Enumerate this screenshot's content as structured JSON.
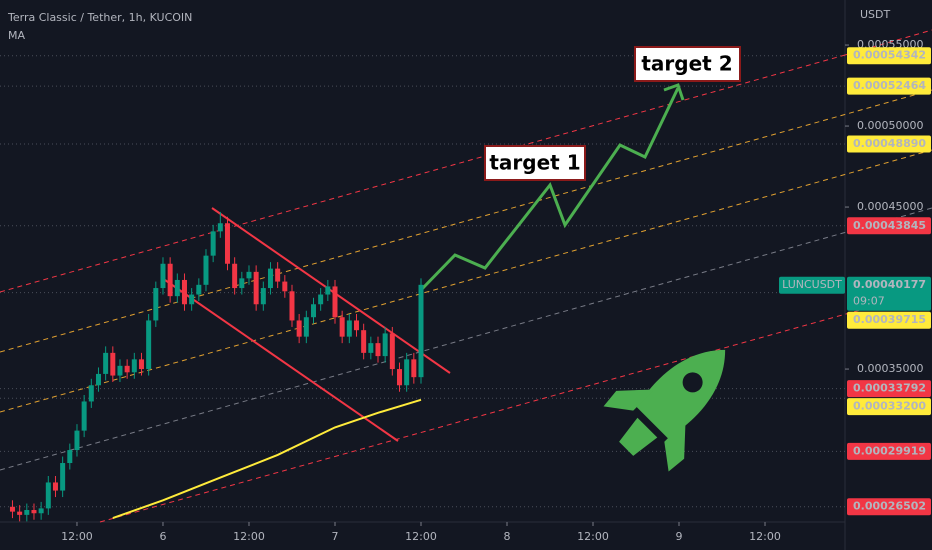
{
  "chart_data": {
    "type": "candlestick",
    "title": "Terra Classic / Tether, 1h, KUCOIN",
    "currency": "USDT",
    "up_color": "#089981",
    "down_color": "#f23645",
    "x": [
      -9,
      -8,
      -7,
      -6,
      -5,
      -4,
      -3,
      -2,
      -1,
      0,
      1,
      2,
      3,
      4,
      5,
      6,
      7,
      8,
      9,
      10,
      11,
      12,
      13,
      14,
      15,
      16,
      17,
      18,
      19,
      20,
      21,
      22,
      23,
      24,
      25,
      26,
      27,
      28,
      29,
      30,
      31,
      32,
      33,
      34,
      35,
      36,
      37,
      38,
      39,
      40,
      41,
      42,
      43,
      44,
      45,
      46,
      47,
      48
    ],
    "open": [
      0.000265,
      0.000262,
      0.00026,
      0.000263,
      0.000261,
      0.000264,
      0.00028,
      0.000275,
      0.000292,
      0.0003,
      0.000312,
      0.00033,
      0.00034,
      0.000347,
      0.00036,
      0.000346,
      0.000352,
      0.000348,
      0.000356,
      0.00035,
      0.00038,
      0.0004,
      0.000415,
      0.000395,
      0.000405,
      0.00039,
      0.000396,
      0.000402,
      0.00042,
      0.000435,
      0.00044,
      0.000415,
      0.0004,
      0.000406,
      0.00041,
      0.00039,
      0.0004,
      0.000412,
      0.000404,
      0.000398,
      0.00038,
      0.00037,
      0.000382,
      0.00039,
      0.000396,
      0.000401,
      0.000382,
      0.00037,
      0.00038,
      0.000374,
      0.00036,
      0.000366,
      0.000358,
      0.000372,
      0.00035,
      0.00034,
      0.000356,
      0.000345
    ],
    "high": [
      0.000269,
      0.000266,
      0.000267,
      0.000267,
      0.000268,
      0.000284,
      0.000284,
      0.000296,
      0.000304,
      0.000316,
      0.000334,
      0.000344,
      0.000351,
      0.000364,
      0.000364,
      0.000356,
      0.000356,
      0.00036,
      0.00036,
      0.000384,
      0.000404,
      0.000419,
      0.000419,
      0.000409,
      0.000409,
      0.0004,
      0.000406,
      0.000424,
      0.000439,
      0.000447,
      0.000444,
      0.000419,
      0.00041,
      0.000414,
      0.000414,
      0.000404,
      0.000416,
      0.000416,
      0.000408,
      0.000402,
      0.000384,
      0.000386,
      0.000394,
      0.0004,
      0.000405,
      0.000405,
      0.000386,
      0.000384,
      0.000384,
      0.000378,
      0.00037,
      0.00037,
      0.000376,
      0.000376,
      0.000354,
      0.00036,
      0.00036,
      0.000406
    ],
    "low": [
      0.000258,
      0.000256,
      0.000256,
      0.000257,
      0.000257,
      0.00026,
      0.000271,
      0.000271,
      0.000288,
      0.000296,
      0.000308,
      0.000326,
      0.000336,
      0.000343,
      0.000342,
      0.000342,
      0.000344,
      0.000344,
      0.000346,
      0.000346,
      0.000376,
      0.000396,
      0.000391,
      0.000391,
      0.000386,
      0.000386,
      0.000392,
      0.000398,
      0.000416,
      0.000431,
      0.000411,
      0.000396,
      0.000396,
      0.000402,
      0.000386,
      0.000386,
      0.000396,
      0.0004,
      0.000394,
      0.000376,
      0.000366,
      0.000366,
      0.000378,
      0.000386,
      0.000392,
      0.000378,
      0.000366,
      0.000366,
      0.00037,
      0.000356,
      0.000356,
      0.000354,
      0.000354,
      0.000346,
      0.000336,
      0.000336,
      0.000341,
      0.000341
    ],
    "close": [
      0.000262,
      0.00026,
      0.000263,
      0.000261,
      0.000264,
      0.00028,
      0.000275,
      0.000292,
      0.0003,
      0.000312,
      0.00033,
      0.00034,
      0.000347,
      0.00036,
      0.000346,
      0.000352,
      0.000348,
      0.000356,
      0.00035,
      0.00038,
      0.0004,
      0.000415,
      0.000395,
      0.000405,
      0.00039,
      0.000396,
      0.000402,
      0.00042,
      0.000435,
      0.00044,
      0.000415,
      0.0004,
      0.000406,
      0.00041,
      0.00039,
      0.0004,
      0.000412,
      0.000404,
      0.000398,
      0.00038,
      0.00037,
      0.000382,
      0.00039,
      0.000396,
      0.000401,
      0.000382,
      0.00037,
      0.00038,
      0.000374,
      0.00036,
      0.000366,
      0.000358,
      0.000372,
      0.00035,
      0.00034,
      0.000356,
      0.000345,
      0.000402
    ],
    "ma": {
      "name": "MA",
      "color": "#ffeb3b",
      "x": [
        5,
        12,
        20,
        28,
        36,
        42,
        48
      ],
      "values": [
        0.000258,
        0.000269,
        0.000283,
        0.000297,
        0.000314,
        0.000323,
        0.000331
      ]
    },
    "xlim": [
      -10.74,
      107.16
    ],
    "xticks": [
      {
        "value": 0,
        "label": "12:00"
      },
      {
        "value": 12,
        "label": "6"
      },
      {
        "value": 24,
        "label": "12:00"
      },
      {
        "value": 36,
        "label": "7"
      },
      {
        "value": 48,
        "label": "12:00"
      },
      {
        "value": 60,
        "label": "8"
      },
      {
        "value": 72,
        "label": "12:00"
      },
      {
        "value": 84,
        "label": "9"
      },
      {
        "value": 96,
        "label": "12:00"
      }
    ],
    "ylim": [
      0.0002556,
      0.0005778
    ],
    "yticks": [
      {
        "value": 0.00035,
        "label": "0.00035000"
      },
      {
        "value": 0.00045,
        "label": "0.00045000"
      },
      {
        "value": 0.0005,
        "label": "0.00050000"
      },
      {
        "value": 0.00055,
        "label": "0.00055000"
      }
    ],
    "price_labels": [
      {
        "value": 0.00054342,
        "label": "0.00054342",
        "color": "#ffeb3b"
      },
      {
        "value": 0.00052464,
        "label": "0.00052464",
        "color": "#ffeb3b"
      },
      {
        "value": 0.0004889,
        "label": "0.00048890",
        "color": "#ffeb3b"
      },
      {
        "value": 0.00043845,
        "label": "0.00043845",
        "color": "#f23645"
      },
      {
        "value": 0.00039715,
        "label": "0.00039715",
        "color": "#ffeb3b"
      },
      {
        "value": 0.00033792,
        "label": "0.00033792",
        "color": "#f23645"
      },
      {
        "value": 0.000332,
        "label": "0.00033200",
        "color": "#ffeb3b"
      },
      {
        "value": 0.00029919,
        "label": "0.00029919",
        "color": "#f23645"
      },
      {
        "value": 0.00026502,
        "label": "0.00026502",
        "color": "#f23645"
      }
    ],
    "last_price": {
      "symbol": "LUNCUSDT",
      "value": 0.00040177,
      "label": "0.00040177",
      "countdown": "09:07",
      "color": "#089981"
    },
    "annotations": [
      "target 1",
      "target 2"
    ]
  }
}
